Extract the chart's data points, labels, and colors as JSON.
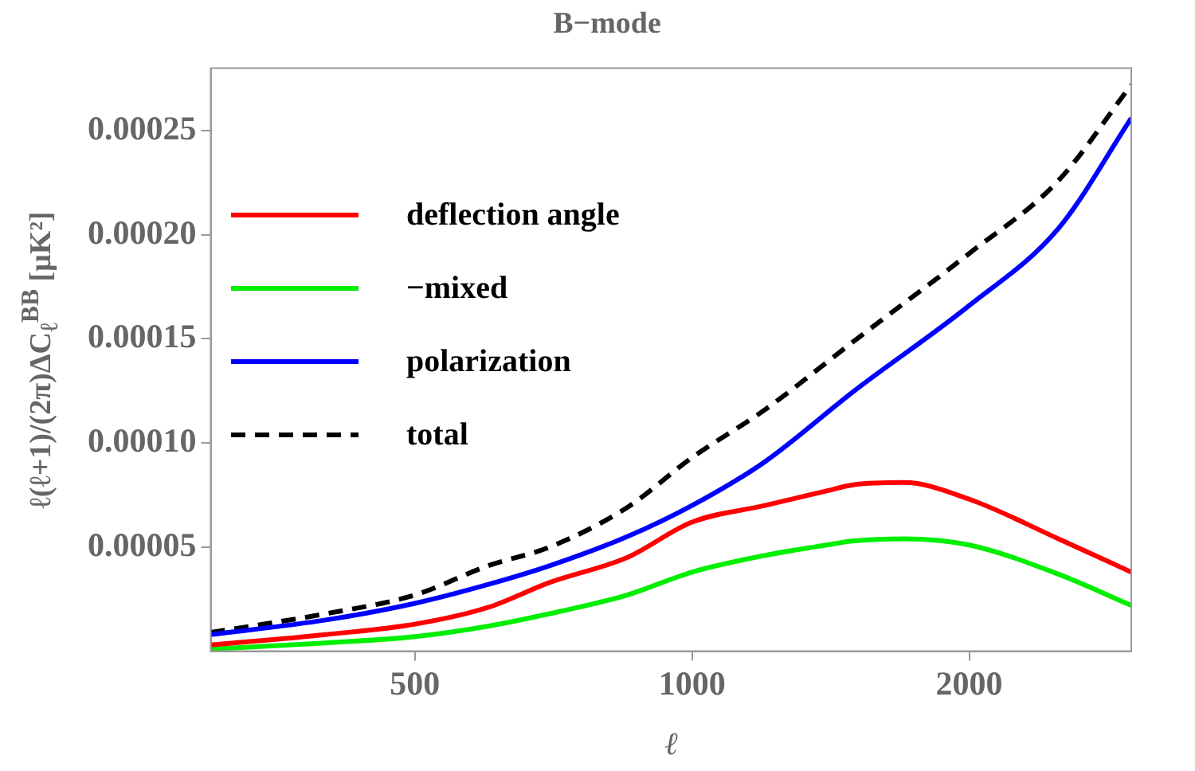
{
  "chart_data": {
    "type": "line",
    "title": "B−mode",
    "xlabel": "ℓ",
    "ylabel": "ℓ(ℓ+1)/(2π)ΔC$_{ℓ}$$^{BB}$ [μK²]",
    "log": "x",
    "xlim": [
      300,
      3000
    ],
    "xticks": [
      500,
      1000,
      2000
    ],
    "ylim": [
      0,
      0.00028
    ],
    "yticks": [
      {
        "value": 5e-05,
        "label": "0.00005"
      },
      {
        "value": 0.0001,
        "label": "0.00010"
      },
      {
        "value": 0.00015,
        "label": "0.00015"
      },
      {
        "value": 0.0002,
        "label": "0.00020"
      },
      {
        "value": 0.00025,
        "label": "0.00025"
      }
    ],
    "grid": false,
    "legend": "top left",
    "marker": "none",
    "series": [
      {
        "name": "deflection angle",
        "color": "#ff0000",
        "x": [
          300,
          400,
          500,
          600,
          700,
          850,
          1000,
          1200,
          1400,
          1500,
          1700,
          2000,
          2500,
          3000
        ],
        "values": [
          3e-06,
          8e-06,
          1.3e-05,
          2.1e-05,
          3.3e-05,
          4.5e-05,
          6.2e-05,
          7e-05,
          7.7e-05,
          8e-05,
          8.1e-05,
          7.3e-05,
          5.4e-05,
          3.8e-05
        ]
      },
      {
        "name": "−mixed",
        "color": "#00ee00",
        "x": [
          300,
          400,
          500,
          600,
          700,
          850,
          1000,
          1200,
          1400,
          1500,
          1700,
          2000,
          2500,
          3000
        ],
        "values": [
          1e-06,
          4e-06,
          7e-06,
          1.2e-05,
          1.8e-05,
          2.7e-05,
          3.8e-05,
          4.6e-05,
          5.1e-05,
          5.3e-05,
          5.4e-05,
          5.1e-05,
          3.7e-05,
          2.2e-05
        ]
      },
      {
        "name": "polarization",
        "color": "#0000ff",
        "x": [
          300,
          400,
          500,
          600,
          700,
          850,
          1000,
          1200,
          1500,
          2000,
          2500,
          3000
        ],
        "values": [
          8e-06,
          1.5e-05,
          2.3e-05,
          3.2e-05,
          4.1e-05,
          5.5e-05,
          7e-05,
          9.1e-05,
          0.000125,
          0.000166,
          0.000203,
          0.000256
        ]
      },
      {
        "name": "total",
        "color": "#000000",
        "line_style": "dashed",
        "x": [
          300,
          400,
          500,
          600,
          700,
          850,
          1000,
          1200,
          1500,
          2000,
          2500,
          3000
        ],
        "values": [
          9e-06,
          1.8e-05,
          2.7e-05,
          4.1e-05,
          5e-05,
          6.9e-05,
          9.3e-05,
          0.000116,
          0.000149,
          0.000191,
          0.000226,
          0.000272
        ]
      }
    ]
  }
}
